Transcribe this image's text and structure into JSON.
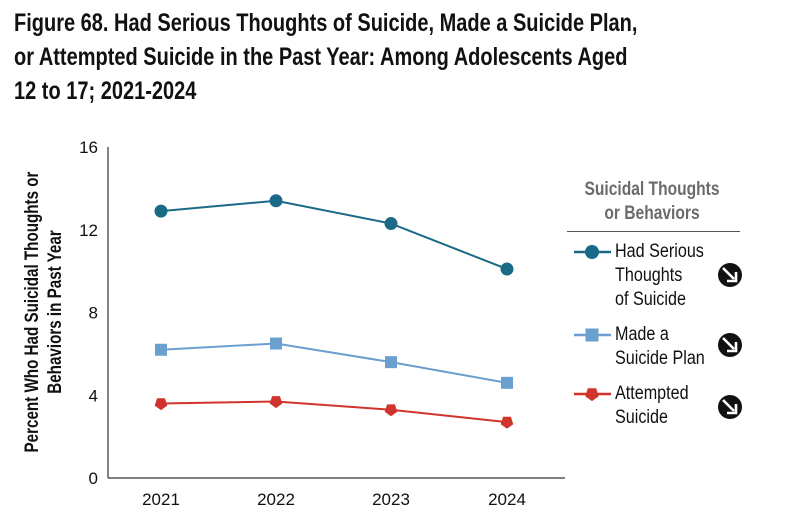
{
  "title_lines": [
    "Figure 68. Had Serious Thoughts of Suicide, Made a Suicide Plan,",
    "or Attempted Suicide in the Past Year: Among Adolescents Aged",
    "12 to 17; 2021-2024"
  ],
  "chart_data": {
    "type": "line",
    "title": "Figure 68. Had Serious Thoughts of Suicide, Made a Suicide Plan, or Attempted Suicide in the Past Year: Among Adolescents Aged 12 to 17; 2021-2024",
    "xlabel": "",
    "ylabel_lines": [
      "Percent Who Had Suicidal Thoughts or",
      "Behaviors in Past Year"
    ],
    "categories": [
      "2021",
      "2022",
      "2023",
      "2024"
    ],
    "ylim": [
      0,
      16
    ],
    "yticks": [
      "0",
      "4",
      "8",
      "12",
      "16"
    ],
    "grid": false,
    "legend_title_lines": [
      "Suicidal Thoughts",
      "or Behaviors"
    ],
    "legend_position": "right",
    "series": [
      {
        "name": "Had Serious Thoughts of Suicide",
        "label_lines": [
          "Had Serious",
          "Thoughts",
          "of Suicide"
        ],
        "values": [
          12.9,
          13.4,
          12.3,
          10.1
        ],
        "color": "#1a6a87",
        "marker": "circle",
        "trend_icon": "down-arrow-circle-icon"
      },
      {
        "name": "Made a Suicide Plan",
        "label_lines": [
          "Made a",
          "Suicide Plan"
        ],
        "values": [
          6.2,
          6.5,
          5.6,
          4.6
        ],
        "color": "#6a9fd0",
        "marker": "square",
        "trend_icon": "down-arrow-circle-icon"
      },
      {
        "name": "Attempted Suicide",
        "label_lines": [
          "Attempted",
          "Suicide"
        ],
        "values": [
          3.6,
          3.7,
          3.3,
          2.7
        ],
        "color": "#d0342c",
        "marker": "pentagon",
        "trend_icon": "down-arrow-circle-icon"
      }
    ]
  }
}
